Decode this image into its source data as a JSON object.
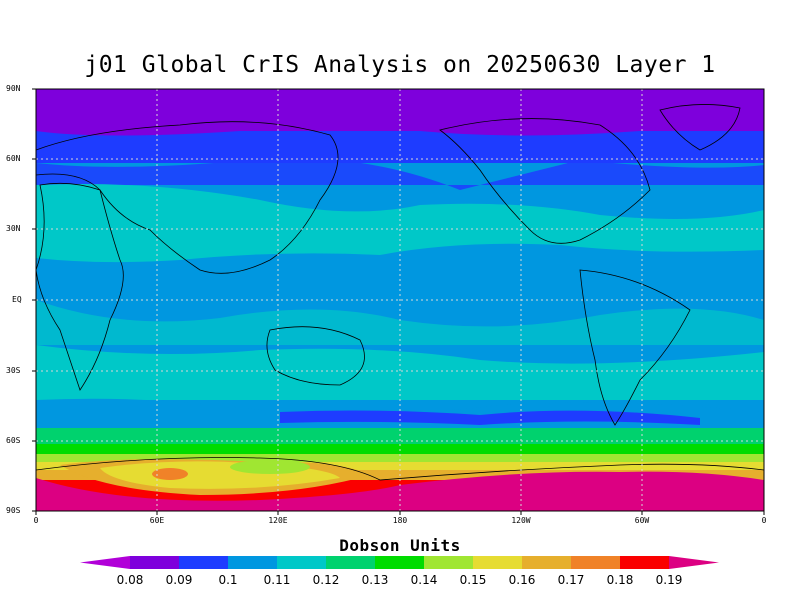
{
  "title": "j01 Global CrIS Analysis on 20250630 Layer 1",
  "map": {
    "lat_labels": [
      "90N",
      "60N",
      "30N",
      "EQ",
      "30S",
      "60S",
      "90S"
    ],
    "lon_labels": [
      "0",
      "60E",
      "120E",
      "180",
      "120W",
      "60W",
      "0"
    ],
    "grid": "dotted"
  },
  "colorbar": {
    "title": "Dobson Units",
    "labels": [
      "0.08",
      "0.09",
      "0.1",
      "0.11",
      "0.12",
      "0.13",
      "0.14",
      "0.15",
      "0.16",
      "0.17",
      "0.18",
      "0.19"
    ],
    "colors": [
      "#b100d8",
      "#7e00dc",
      "#1e3cff",
      "#0097e0",
      "#00c8c8",
      "#00d26e",
      "#00dc00",
      "#a0e632",
      "#e6dc32",
      "#e6af2d",
      "#f08228",
      "#fa0000",
      "#dc0082"
    ]
  },
  "chart_data": {
    "type": "heatmap",
    "title": "j01 Global CrIS Analysis on 20250630 Layer 1",
    "xlabel": "",
    "ylabel": "",
    "units": "Dobson Units",
    "x_range": [
      "0",
      "0"
    ],
    "y_range": [
      "90S",
      "90N"
    ],
    "lat_bands": [
      {
        "lat": [
          70,
          90
        ],
        "value": 0.08
      },
      {
        "lat": [
          55,
          70
        ],
        "value": 0.09
      },
      {
        "lat": [
          15,
          55
        ],
        "value": 0.11
      },
      {
        "lat": [
          -15,
          15
        ],
        "value": 0.1
      },
      {
        "lat": [
          -40,
          -15
        ],
        "value": 0.11
      },
      {
        "lat": [
          -55,
          -40
        ],
        "value": 0.1
      },
      {
        "lat": [
          -60,
          -55
        ],
        "value": 0.12
      },
      {
        "lat": [
          -65,
          -60
        ],
        "value": 0.14
      },
      {
        "lat": [
          -70,
          -65
        ],
        "value": 0.16
      },
      {
        "lat": [
          -75,
          -70
        ],
        "value": 0.17
      },
      {
        "lat": [
          -90,
          -75
        ],
        "value": 0.19
      }
    ]
  }
}
